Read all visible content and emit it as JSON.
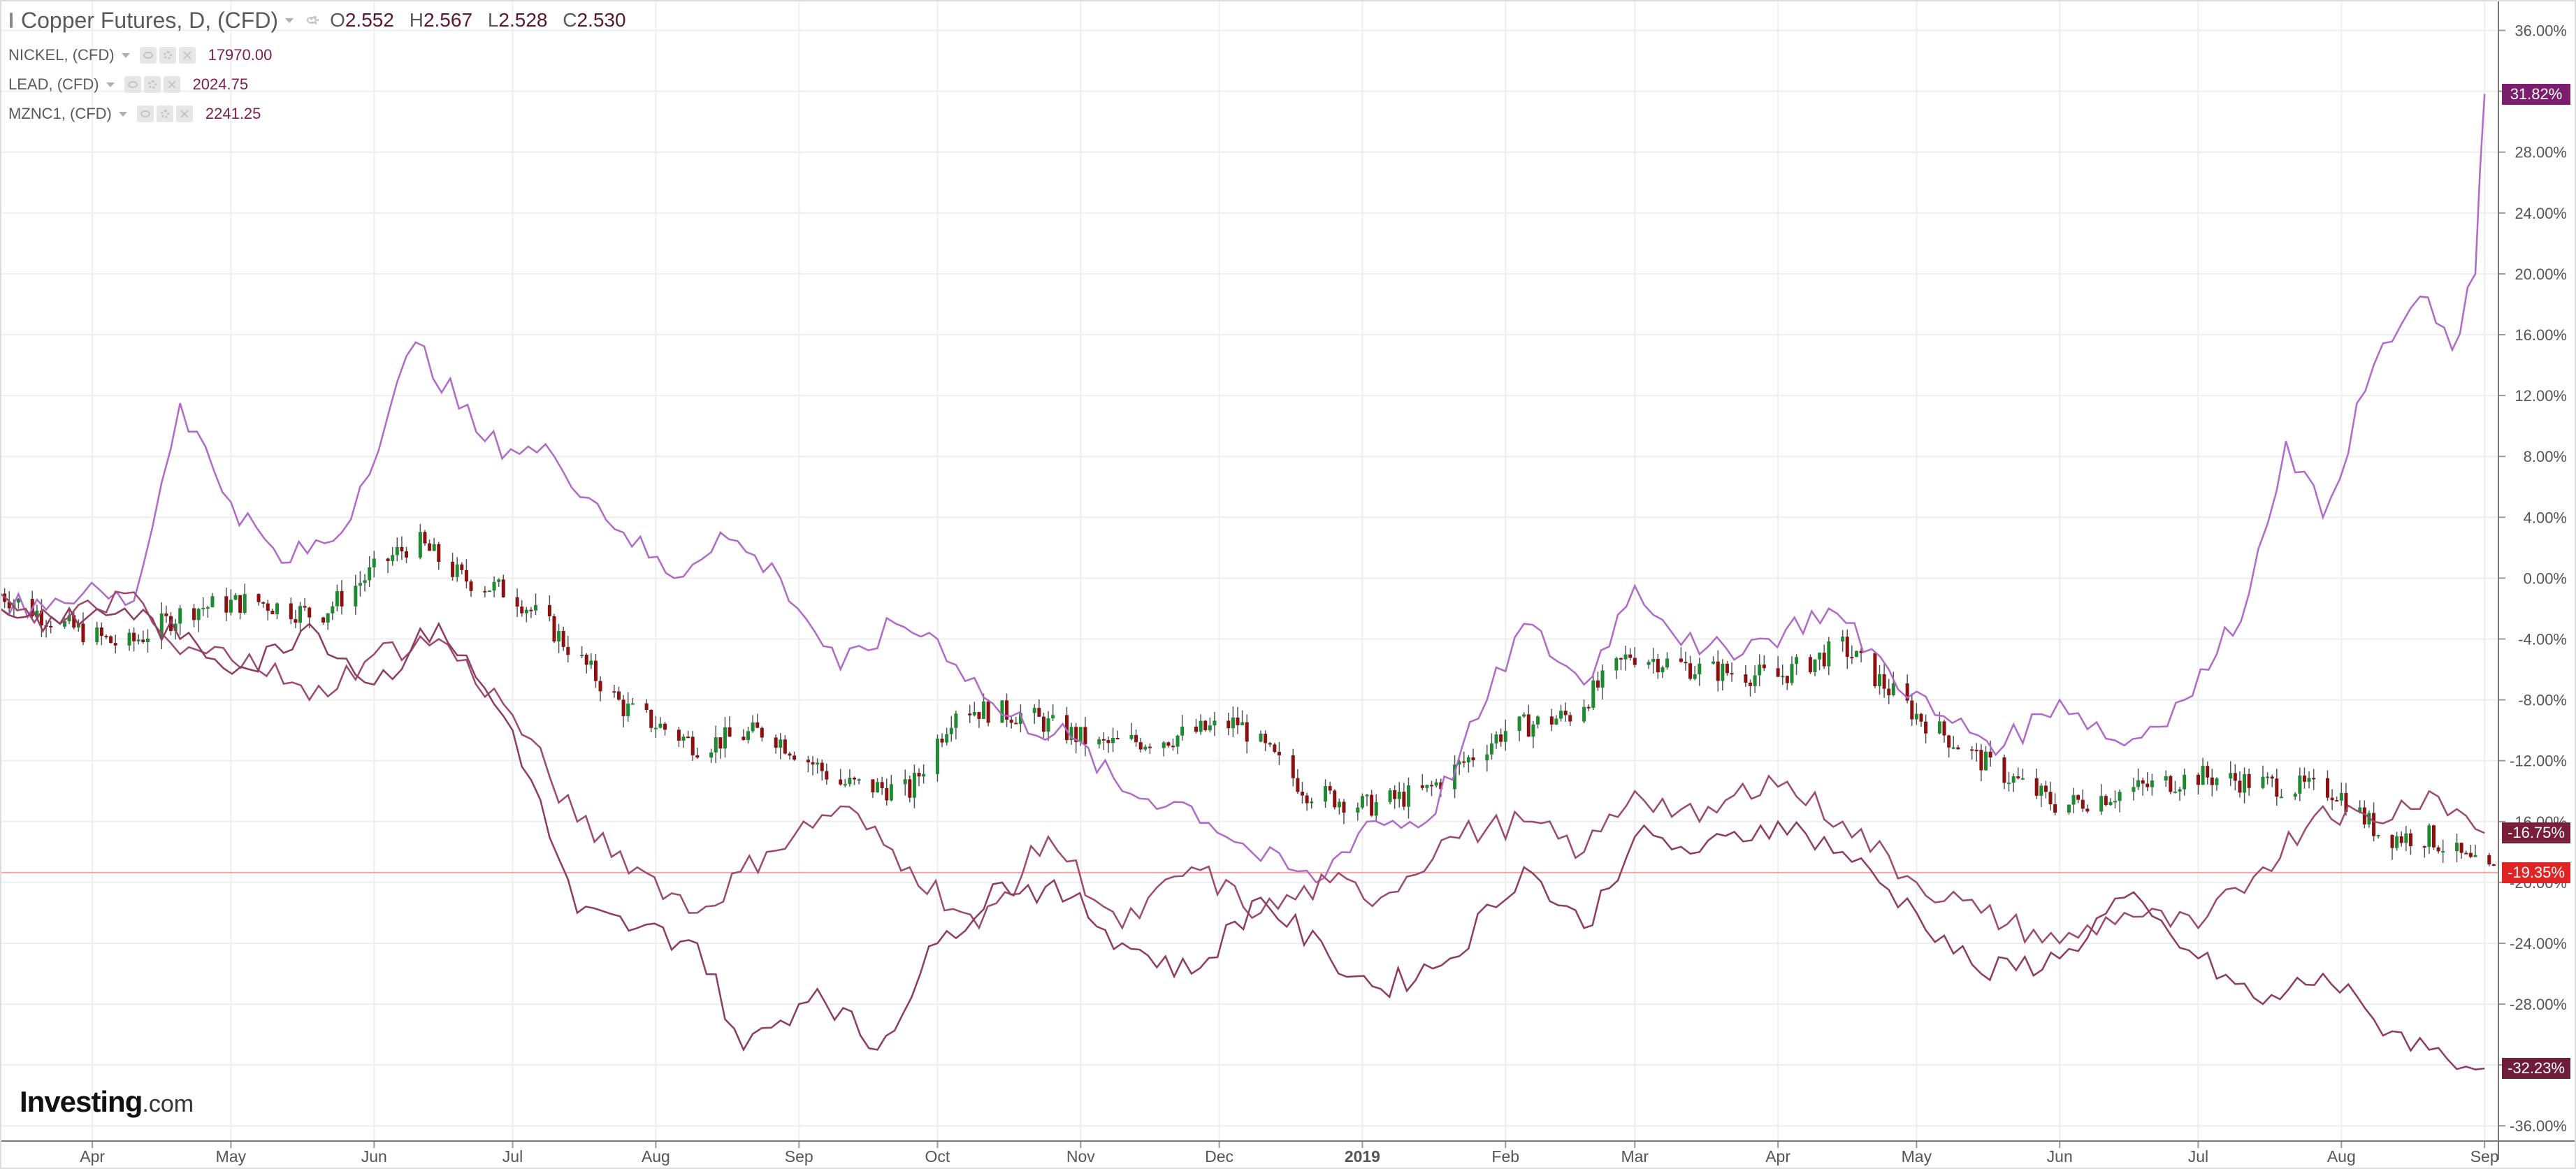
{
  "legend": {
    "main": {
      "title": "Copper Futures, D, (CFD)",
      "ohlc": {
        "o_label": "O",
        "o": "2.552",
        "h_label": "H",
        "h": "2.567",
        "l_label": "L",
        "l": "2.528",
        "c_label": "C",
        "c": "2.530"
      }
    },
    "series": [
      {
        "title": "NICKEL, (CFD)",
        "value": "17970.00"
      },
      {
        "title": "LEAD, (CFD)",
        "value": "2024.75"
      },
      {
        "title": "MZNC1, (CFD)",
        "value": "2241.25"
      }
    ]
  },
  "price_tags": [
    {
      "label": "31.82%",
      "value": 31.82,
      "color": "#7b1e6e"
    },
    {
      "label": "-16.75%",
      "value": -16.75,
      "color": "#7a1e3a"
    },
    {
      "label": "-19.35%",
      "value": -19.35,
      "color": "#e02424"
    },
    {
      "label": "-32.23%",
      "value": -32.23,
      "color": "#6e1e3a"
    }
  ],
  "logo": {
    "name": "Investing",
    "suffix": ".com"
  },
  "colors": {
    "up": "#1e8a32",
    "down": "#8b1111",
    "nickel": "#b06ac8",
    "lead": "#9c4a6e",
    "zinc": "#8e3c5f",
    "current_line": "#f3a6a6",
    "grid": "#eeeeee"
  },
  "chart_data": {
    "type": "candlestick+line",
    "title": "Copper Futures, D, (CFD)",
    "y_scale": "percent change",
    "ylim": [
      -37,
      38
    ],
    "y_ticks": [
      -36,
      -32,
      -28,
      -24,
      -20,
      -16,
      -12,
      -8,
      -4,
      0,
      4,
      8,
      12,
      16,
      20,
      24,
      28,
      32,
      36
    ],
    "y_tick_labels": [
      "-36.00%",
      "-32.00%",
      "-28.00%",
      "-24.00%",
      "-20.00%",
      "-16.00%",
      "-12.00%",
      "-8.00%",
      "-4.00%",
      "0.00%",
      "4.00%",
      "8.00%",
      "12.00%",
      "16.00%",
      "20.00%",
      "24.00%",
      "28.00%",
      "32.00%",
      "36.00%"
    ],
    "x_range": [
      "2018-03-12",
      "2019-09-04"
    ],
    "x_ticks": [
      {
        "date": "2018-04-01",
        "label": "Apr"
      },
      {
        "date": "2018-05-01",
        "label": "May"
      },
      {
        "date": "2018-06-01",
        "label": "Jun"
      },
      {
        "date": "2018-07-01",
        "label": "Jul"
      },
      {
        "date": "2018-08-01",
        "label": "Aug"
      },
      {
        "date": "2018-09-01",
        "label": "Sep"
      },
      {
        "date": "2018-10-01",
        "label": "Oct"
      },
      {
        "date": "2018-11-01",
        "label": "Nov"
      },
      {
        "date": "2018-12-01",
        "label": "Dec"
      },
      {
        "date": "2019-01-01",
        "label": "2019"
      },
      {
        "date": "2019-02-01",
        "label": "Feb"
      },
      {
        "date": "2019-03-01",
        "label": "Mar"
      },
      {
        "date": "2019-04-01",
        "label": "Apr"
      },
      {
        "date": "2019-05-01",
        "label": "May"
      },
      {
        "date": "2019-06-01",
        "label": "Jun"
      },
      {
        "date": "2019-07-01",
        "label": "Jul"
      },
      {
        "date": "2019-08-01",
        "label": "Aug"
      },
      {
        "date": "2019-09-01",
        "label": "Sep"
      }
    ],
    "copper_close_pct": [
      [
        "2018-03-12",
        -1
      ],
      [
        "2018-03-25",
        -3
      ],
      [
        "2018-04-08",
        -4.5
      ],
      [
        "2018-04-22",
        -2
      ],
      [
        "2018-05-06",
        -1.5
      ],
      [
        "2018-05-20",
        -2.5
      ],
      [
        "2018-06-03",
        1
      ],
      [
        "2018-06-10",
        2.5
      ],
      [
        "2018-06-20",
        0
      ],
      [
        "2018-07-01",
        -1
      ],
      [
        "2018-07-10",
        -3.5
      ],
      [
        "2018-07-25",
        -8.5
      ],
      [
        "2018-08-10",
        -11
      ],
      [
        "2018-08-25",
        -10
      ],
      [
        "2018-09-10",
        -13.5
      ],
      [
        "2018-09-25",
        -14
      ],
      [
        "2018-10-05",
        -8.5
      ],
      [
        "2018-10-20",
        -9
      ],
      [
        "2018-11-05",
        -11
      ],
      [
        "2018-11-20",
        -10.5
      ],
      [
        "2018-12-05",
        -9.5
      ],
      [
        "2018-12-20",
        -14
      ],
      [
        "2019-01-02",
        -15
      ],
      [
        "2019-01-15",
        -14
      ],
      [
        "2019-02-01",
        -10
      ],
      [
        "2019-02-15",
        -9
      ],
      [
        "2019-02-28",
        -5
      ],
      [
        "2019-03-15",
        -6
      ],
      [
        "2019-04-01",
        -6.5
      ],
      [
        "2019-04-15",
        -4.5
      ],
      [
        "2019-05-01",
        -9
      ],
      [
        "2019-05-15",
        -12
      ],
      [
        "2019-06-01",
        -15
      ],
      [
        "2019-06-15",
        -14
      ],
      [
        "2019-07-01",
        -13
      ],
      [
        "2019-07-15",
        -13.5
      ],
      [
        "2019-07-31",
        -14
      ],
      [
        "2019-08-10",
        -17
      ],
      [
        "2019-08-20",
        -17
      ],
      [
        "2019-09-01",
        -19.35
      ]
    ],
    "series": [
      {
        "name": "NICKEL, (CFD)",
        "values": [
          [
            "2018-03-12",
            -2
          ],
          [
            "2018-03-30",
            -1
          ],
          [
            "2018-04-10",
            -1.5
          ],
          [
            "2018-04-20",
            11.5
          ],
          [
            "2018-05-01",
            5
          ],
          [
            "2018-05-12",
            1
          ],
          [
            "2018-05-25",
            3
          ],
          [
            "2018-06-10",
            15.5
          ],
          [
            "2018-06-25",
            9
          ],
          [
            "2018-07-10",
            8
          ],
          [
            "2018-07-25",
            3
          ],
          [
            "2018-08-05",
            0
          ],
          [
            "2018-08-15",
            3
          ],
          [
            "2018-08-28",
            0
          ],
          [
            "2018-09-10",
            -6
          ],
          [
            "2018-09-22",
            -3
          ],
          [
            "2018-10-01",
            -4
          ],
          [
            "2018-10-15",
            -9
          ],
          [
            "2018-10-30",
            -10.5
          ],
          [
            "2018-11-10",
            -14
          ],
          [
            "2018-11-25",
            -15
          ],
          [
            "2018-12-08",
            -18
          ],
          [
            "2018-12-22",
            -20
          ],
          [
            "2019-01-02",
            -16
          ],
          [
            "2019-01-15",
            -16
          ],
          [
            "2019-01-28",
            -8
          ],
          [
            "2019-02-05",
            -3
          ],
          [
            "2019-02-18",
            -7
          ],
          [
            "2019-03-01",
            -0.5
          ],
          [
            "2019-03-15",
            -5
          ],
          [
            "2019-03-30",
            -4
          ],
          [
            "2019-04-12",
            -2
          ],
          [
            "2019-04-25",
            -6
          ],
          [
            "2019-05-05",
            -9
          ],
          [
            "2019-05-20",
            -11
          ],
          [
            "2019-06-01",
            -8
          ],
          [
            "2019-06-15",
            -11
          ],
          [
            "2019-06-28",
            -8
          ],
          [
            "2019-07-05",
            -5
          ],
          [
            "2019-07-12",
            -1
          ],
          [
            "2019-07-20",
            9
          ],
          [
            "2019-07-28",
            4
          ],
          [
            "2019-08-08",
            14
          ],
          [
            "2019-08-18",
            18.5
          ],
          [
            "2019-08-25",
            15
          ],
          [
            "2019-08-30",
            20
          ],
          [
            "2019-09-01",
            31.82
          ]
        ]
      },
      {
        "name": "LEAD, (CFD)",
        "values": [
          [
            "2018-03-12",
            -1
          ],
          [
            "2018-03-25",
            -3
          ],
          [
            "2018-04-08",
            -1
          ],
          [
            "2018-04-20",
            -5
          ],
          [
            "2018-05-05",
            -5
          ],
          [
            "2018-05-18",
            -8
          ],
          [
            "2018-06-01",
            -5
          ],
          [
            "2018-06-15",
            -4
          ],
          [
            "2018-07-01",
            -9
          ],
          [
            "2018-07-15",
            -16
          ],
          [
            "2018-07-28",
            -19
          ],
          [
            "2018-08-10",
            -22
          ],
          [
            "2018-08-25",
            -18
          ],
          [
            "2018-09-10",
            -15
          ],
          [
            "2018-09-25",
            -19
          ],
          [
            "2018-10-10",
            -23
          ],
          [
            "2018-10-25",
            -17
          ],
          [
            "2018-11-10",
            -23
          ],
          [
            "2018-11-25",
            -19
          ],
          [
            "2018-12-10",
            -22
          ],
          [
            "2018-12-25",
            -20
          ],
          [
            "2019-01-05",
            -21
          ],
          [
            "2019-01-20",
            -17
          ],
          [
            "2019-02-05",
            -16
          ],
          [
            "2019-02-18",
            -18
          ],
          [
            "2019-03-01",
            -14
          ],
          [
            "2019-03-15",
            -16
          ],
          [
            "2019-03-30",
            -13
          ],
          [
            "2019-04-15",
            -16
          ],
          [
            "2019-05-01",
            -20
          ],
          [
            "2019-05-15",
            -22
          ],
          [
            "2019-06-01",
            -24
          ],
          [
            "2019-06-15",
            -22
          ],
          [
            "2019-07-01",
            -23
          ],
          [
            "2019-07-15",
            -19
          ],
          [
            "2019-07-28",
            -15
          ],
          [
            "2019-08-08",
            -16
          ],
          [
            "2019-08-20",
            -14
          ],
          [
            "2019-09-01",
            -16.75
          ]
        ]
      },
      {
        "name": "MZNC1, (CFD)",
        "values": [
          [
            "2018-03-12",
            -2
          ],
          [
            "2018-03-25",
            -3
          ],
          [
            "2018-04-08",
            -2
          ],
          [
            "2018-04-20",
            -4
          ],
          [
            "2018-05-05",
            -6
          ],
          [
            "2018-05-18",
            -3
          ],
          [
            "2018-06-01",
            -7
          ],
          [
            "2018-06-15",
            -3
          ],
          [
            "2018-07-01",
            -10
          ],
          [
            "2018-07-15",
            -22
          ],
          [
            "2018-07-28",
            -23
          ],
          [
            "2018-08-10",
            -24
          ],
          [
            "2018-08-20",
            -31
          ],
          [
            "2018-09-05",
            -27
          ],
          [
            "2018-09-18",
            -31
          ],
          [
            "2018-10-01",
            -24
          ],
          [
            "2018-10-15",
            -20
          ],
          [
            "2018-10-30",
            -21
          ],
          [
            "2018-11-10",
            -24
          ],
          [
            "2018-11-25",
            -26
          ],
          [
            "2018-12-10",
            -21
          ],
          [
            "2018-12-25",
            -25
          ],
          [
            "2019-01-05",
            -27
          ],
          [
            "2019-01-20",
            -25
          ],
          [
            "2019-02-05",
            -19
          ],
          [
            "2019-02-18",
            -23
          ],
          [
            "2019-03-01",
            -17
          ],
          [
            "2019-03-15",
            -18
          ],
          [
            "2019-04-01",
            -16
          ],
          [
            "2019-04-15",
            -18
          ],
          [
            "2019-05-01",
            -22
          ],
          [
            "2019-05-15",
            -26
          ],
          [
            "2019-06-01",
            -25
          ],
          [
            "2019-06-15",
            -21
          ],
          [
            "2019-07-01",
            -25
          ],
          [
            "2019-07-15",
            -28
          ],
          [
            "2019-07-28",
            -26
          ],
          [
            "2019-08-08",
            -29
          ],
          [
            "2019-08-20",
            -31
          ],
          [
            "2019-09-01",
            -32.23
          ]
        ]
      }
    ],
    "current_value_line": -19.35,
    "grid": true,
    "legend_position": "top-left"
  }
}
